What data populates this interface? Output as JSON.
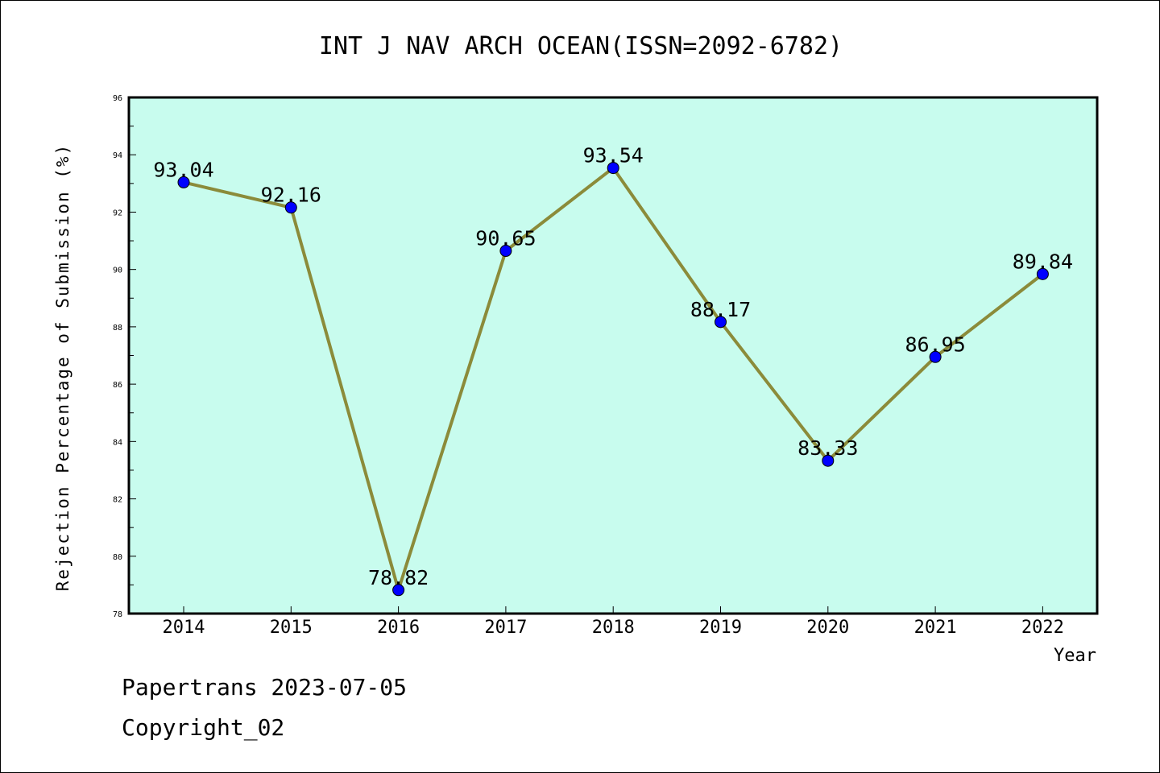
{
  "chart_data": {
    "type": "line",
    "title": "INT J NAV ARCH OCEAN(ISSN=2092-6782)",
    "xlabel": "Year",
    "ylabel": "Rejection Percentage of Submission (%)",
    "categories": [
      "2014",
      "2015",
      "2016",
      "2017",
      "2018",
      "2019",
      "2020",
      "2021",
      "2022"
    ],
    "values": [
      93.04,
      92.16,
      78.82,
      90.65,
      93.54,
      88.17,
      83.33,
      86.95,
      89.84
    ],
    "data_labels": [
      "93.04",
      "92.16",
      "78.82",
      "90.65",
      "93.54",
      "88.17",
      "83.33",
      "86.95",
      "89.84"
    ],
    "ylim": [
      78,
      96
    ],
    "yticks": [
      78,
      80,
      82,
      84,
      86,
      88,
      90,
      92,
      94,
      96
    ],
    "ytick_labels": [
      "78",
      "80",
      "82",
      "84",
      "86",
      "88",
      "90",
      "92",
      "94",
      "96"
    ],
    "grid": false,
    "colors": {
      "plot_background": "#c8fcee",
      "line": "#8b8b3a",
      "marker": "#0000ff"
    }
  },
  "footer": {
    "line1": "Papertrans 2023-07-05",
    "line2": "Copyright_02"
  }
}
